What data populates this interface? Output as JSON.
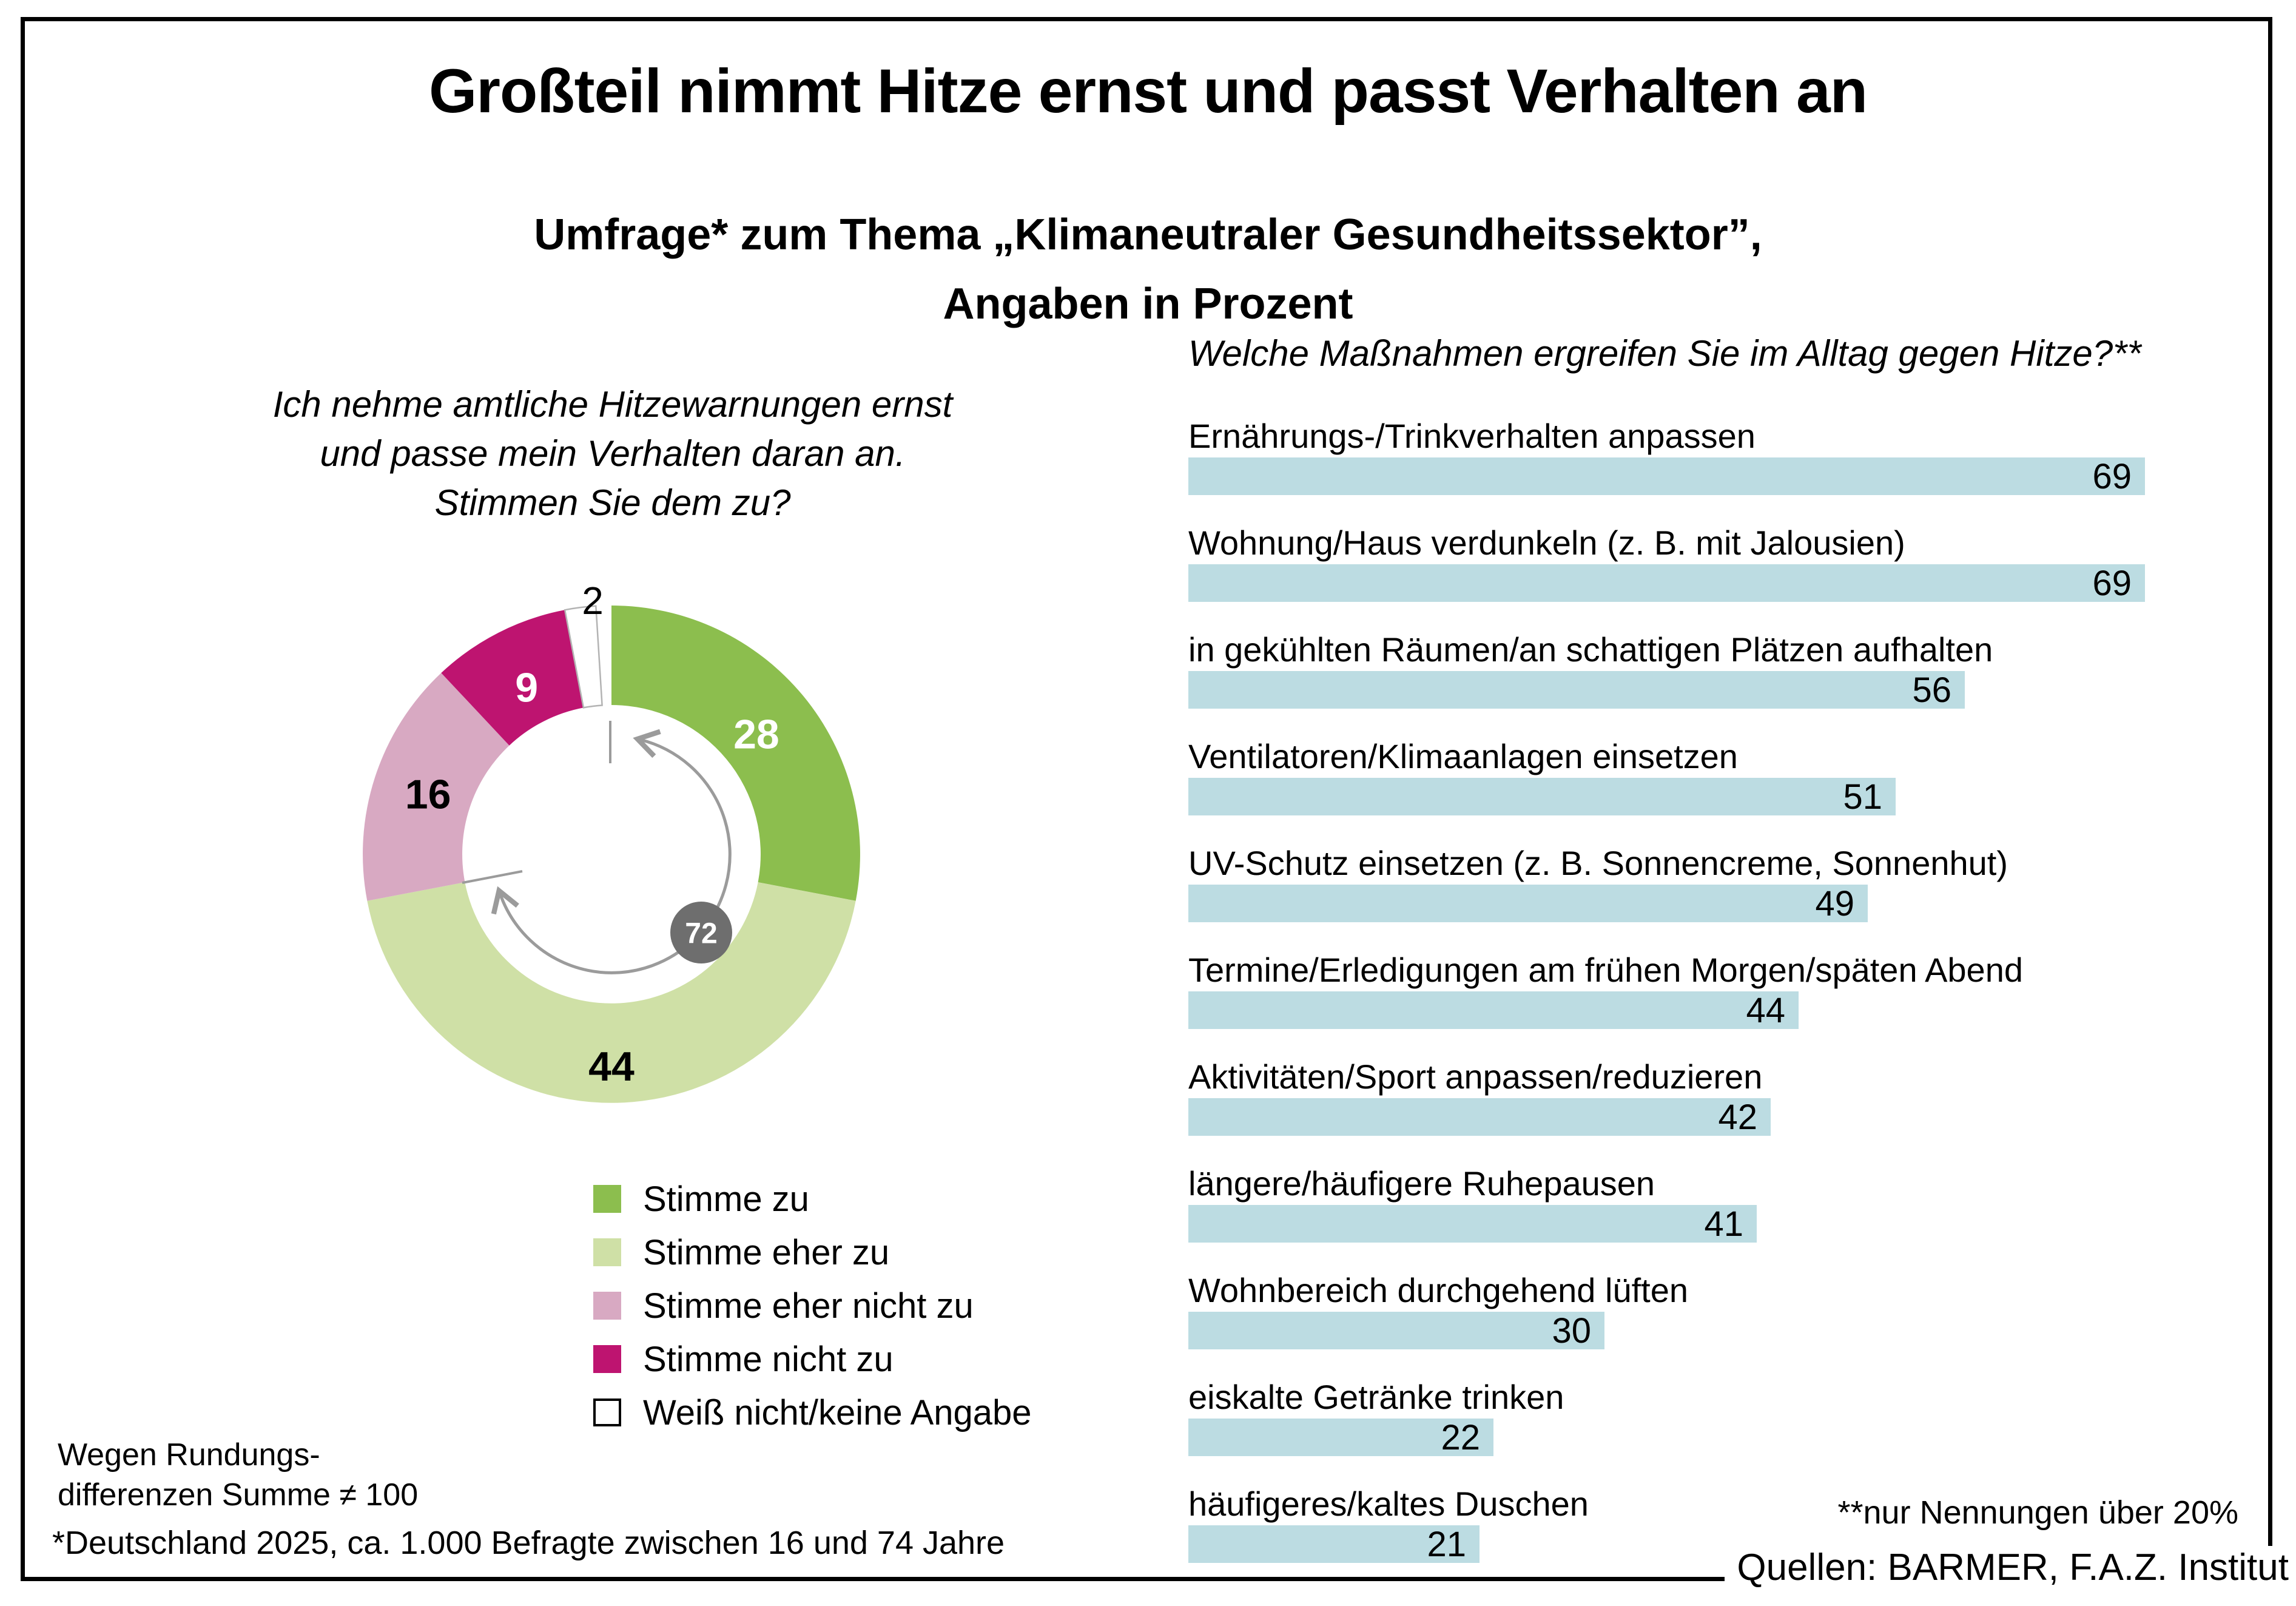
{
  "header": {
    "title": "Großteil nimmt Hitze ernst und passt Verhalten an",
    "subtitle_line1": "Umfrage* zum Thema „Klimaneutraler Gesundheitssektor”,",
    "subtitle_line2": "Angaben in Prozent"
  },
  "donut": {
    "question_line1": "Ich nehme amtliche Hitzewarnungen ernst",
    "question_line2": "und passe mein Verhalten daran an.",
    "question_line3": "Stimmen Sie dem zu?",
    "center_badge": "72"
  },
  "legend": [
    {
      "label": "Stimme zu",
      "color": "#8cbe4e"
    },
    {
      "label": "Stimme eher zu",
      "color": "#cfe0a6"
    },
    {
      "label": "Stimme eher nicht zu",
      "color": "#d8a9c2"
    },
    {
      "label": "Stimme nicht zu",
      "color": "#be1470"
    },
    {
      "label": "Weiß nicht/keine Angabe",
      "color": "#ffffff"
    }
  ],
  "bar_section": {
    "title": "Welche Maßnahmen ergreifen Sie im Alltag gegen Hitze?**"
  },
  "footnotes": {
    "rounding_line1": "Wegen Rundungs-",
    "rounding_line2": "differenzen Summe ≠ 100",
    "sample": "*Deutschland 2025, ca. 1.000 Befragte zwischen 16 und 74 Jahre",
    "bar_note": "**nur Nennungen über 20%",
    "sources": "Quellen: BARMER, F.A.Z. Institut"
  },
  "colors": {
    "bar": "#bcdce2",
    "badge": "#6e6e6e",
    "arrow": "#9b9b9b",
    "white_slice_stroke": "#b3b3b3",
    "frame": "#000000"
  },
  "chart_data": [
    {
      "type": "pie",
      "subtype": "donut",
      "title": "Ich nehme amtliche Hitzewarnungen ernst und passe mein Verhalten daran an. Stimmen Sie dem zu?",
      "labels": [
        "Stimme zu",
        "Stimme eher zu",
        "Stimme eher nicht zu",
        "Stimme nicht zu",
        "Weiß nicht/keine Angabe"
      ],
      "values": [
        28,
        44,
        16,
        9,
        2
      ],
      "colors": [
        "#8cbe4e",
        "#cfe0a6",
        "#d8a9c2",
        "#be1470",
        "#ffffff"
      ],
      "value_label_colors": [
        "#ffffff",
        "#000000",
        "#000000",
        "#ffffff",
        "#000000"
      ],
      "start_angle_deg": 0,
      "direction": "clockwise",
      "center_annotation": 72,
      "note": "Wegen Rundungsdifferenzen Summe ≠ 100",
      "unit": "Prozent"
    },
    {
      "type": "bar",
      "orientation": "horizontal",
      "title": "Welche Maßnahmen ergreifen Sie im Alltag gegen Hitze?**",
      "categories": [
        "Ernährungs-/Trinkverhalten anpassen",
        "Wohnung/Haus verdunkeln (z. B. mit Jalousien)",
        "in gekühlten Räumen/an schattigen Plätzen aufhalten",
        "Ventilatoren/Klimaanlagen einsetzen",
        "UV-Schutz einsetzen (z. B. Sonnencreme, Sonnenhut)",
        "Termine/Erledigungen am frühen Morgen/späten Abend",
        "Aktivitäten/Sport anpassen/reduzieren",
        "längere/häufigere Ruhepausen",
        "Wohnbereich durchgehend lüften",
        "eiskalte Getränke trinken",
        "häufigeres/kaltes Duschen"
      ],
      "values": [
        69,
        69,
        56,
        51,
        49,
        44,
        42,
        41,
        30,
        22,
        21
      ],
      "bar_color": "#bcdce2",
      "xlim": [
        0,
        69
      ],
      "unit": "Prozent",
      "grid": false,
      "legend_position": "none"
    }
  ]
}
